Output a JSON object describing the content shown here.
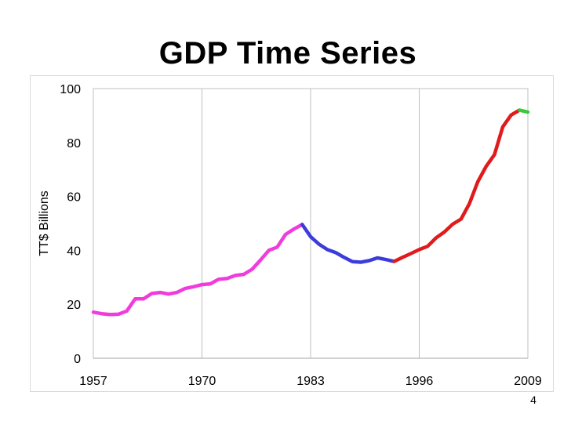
{
  "slide": {
    "title": "GDP Time Series",
    "page_number": "4"
  },
  "chart_data": {
    "type": "line",
    "title": "GDP Time Series",
    "xlabel": "",
    "ylabel": "TT$ Billions",
    "xlim": [
      1957,
      2009
    ],
    "ylim": [
      0,
      100
    ],
    "x_ticks": [
      "1957",
      "1970",
      "1983",
      "1996",
      "2009"
    ],
    "y_ticks": [
      "0",
      "20",
      "40",
      "60",
      "80",
      "100"
    ],
    "grid": "vertical",
    "series": [
      {
        "name": "Segment 1",
        "color": "#f03cdc",
        "x": [
          1957,
          1958,
          1959,
          1960,
          1961,
          1962,
          1963,
          1964,
          1965,
          1966,
          1967,
          1968,
          1969,
          1970,
          1971,
          1972,
          1973,
          1974,
          1975,
          1976,
          1977,
          1978,
          1979,
          1980,
          1981,
          1982
        ],
        "y": [
          17.1,
          16.5,
          16.2,
          16.3,
          17.5,
          22.0,
          22.0,
          24.0,
          24.4,
          23.8,
          24.4,
          25.9,
          26.5,
          27.3,
          27.6,
          29.3,
          29.6,
          30.7,
          31.1,
          33.0,
          36.4,
          40.0,
          41.2,
          45.9,
          47.9,
          49.6
        ]
      },
      {
        "name": "Segment 2",
        "color": "#3c3cdc",
        "x": [
          1982,
          1983,
          1984,
          1985,
          1986,
          1987,
          1988,
          1989,
          1990,
          1991,
          1992,
          1993
        ],
        "y": [
          49.6,
          45.1,
          42.3,
          40.3,
          39.2,
          37.4,
          35.8,
          35.6,
          36.2,
          37.2,
          36.6,
          35.9
        ]
      },
      {
        "name": "Segment 3",
        "color": "#e01b1b",
        "x": [
          1993,
          1994,
          1995,
          1996,
          1997,
          1998,
          1999,
          2000,
          2001,
          2002,
          2003,
          2004,
          2005,
          2006,
          2007,
          2008
        ],
        "y": [
          35.9,
          37.4,
          38.8,
          40.3,
          41.5,
          44.6,
          46.8,
          49.7,
          51.6,
          57.3,
          65.4,
          71.1,
          75.5,
          85.8,
          90.2,
          92.0
        ]
      },
      {
        "name": "Segment 4",
        "color": "#3cc83c",
        "x": [
          2008,
          2009
        ],
        "y": [
          92.0,
          91.3
        ]
      }
    ]
  }
}
